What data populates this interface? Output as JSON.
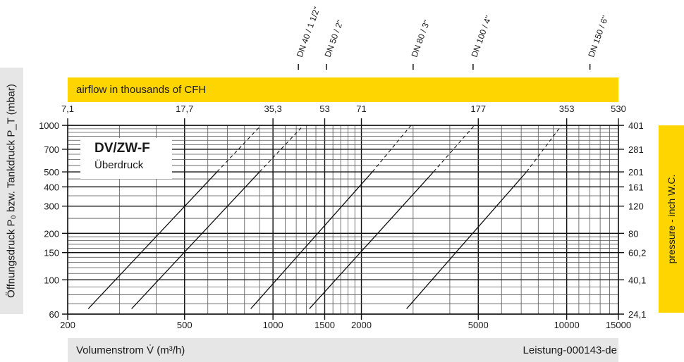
{
  "chart_data": {
    "type": "line",
    "title": "DV/ZW-F",
    "subtitle": "Überdruck",
    "xlabel": "Volumenstrom V̇ (m³/h)",
    "ylabel": "Öffnungsdruck P₀ bzw. Tankdruck P_T (mbar)",
    "x_scale": "log",
    "y_scale": "log",
    "xlim": [
      200,
      15000
    ],
    "ylim": [
      60,
      1000
    ],
    "x_ticks": [
      200,
      500,
      1000,
      1500,
      2000,
      5000,
      10000,
      15000
    ],
    "x_tick_labels": [
      "200",
      "500",
      "1000",
      "1500",
      "2000",
      "5000",
      "10000",
      "15000"
    ],
    "y_ticks": [
      60,
      100,
      150,
      200,
      300,
      400,
      500,
      700,
      1000
    ],
    "y_tick_labels": [
      "60",
      "100",
      "150",
      "200",
      "300",
      "400",
      "500",
      "700",
      "1000"
    ],
    "top_axis_label": "airflow in thousands of CFH",
    "top_ticks": [
      {
        "x": 200,
        "label": "7,1"
      },
      {
        "x": 500,
        "label": "17,7"
      },
      {
        "x": 1000,
        "label": "35,3"
      },
      {
        "x": 1500,
        "label": "53"
      },
      {
        "x": 2000,
        "label": "71"
      },
      {
        "x": 5000,
        "label": "177"
      },
      {
        "x": 10000,
        "label": "353"
      },
      {
        "x": 15000,
        "label": "530"
      }
    ],
    "right_axis_label": "pressure - inch W.C.",
    "right_ticks": [
      {
        "y": 1000,
        "label": "401"
      },
      {
        "y": 700,
        "label": "281"
      },
      {
        "y": 500,
        "label": "201"
      },
      {
        "y": 400,
        "label": "161"
      },
      {
        "y": 300,
        "label": "120"
      },
      {
        "y": 200,
        "label": "80"
      },
      {
        "y": 150,
        "label": "60,2"
      },
      {
        "y": 100,
        "label": "40,1"
      },
      {
        "y": 60,
        "label": "24,1"
      }
    ],
    "source_note": "Leistung-000143-de",
    "series": [
      {
        "name": "DN 40 / 1 1/2\"",
        "points": [
          [
            235,
            65
          ],
          [
            645,
            500
          ],
          [
            910,
            1000
          ]
        ],
        "dashed_above": 500
      },
      {
        "name": "",
        "points": [
          [
            330,
            65
          ],
          [
            900,
            500
          ],
          [
            1270,
            1000
          ]
        ],
        "dashed_above": 500
      },
      {
        "name": "DN 50 / 2\"",
        "points": [
          [
            840,
            65
          ],
          [
            2180,
            500
          ],
          [
            2950,
            1000
          ]
        ],
        "dashed_above": 500
      },
      {
        "name": "DN 80 / 3\"",
        "points": [
          [
            1330,
            65
          ],
          [
            3520,
            500
          ],
          [
            4850,
            1000
          ]
        ],
        "dashed_above": 500
      },
      {
        "name": "DN 100 / 4\"",
        "points": [
          [
            2850,
            65
          ],
          [
            7300,
            500
          ],
          [
            9600,
            1000
          ]
        ],
        "dashed_above": 500
      },
      {
        "name": "DN 150 / 6\"",
        "points": [],
        "dashed_above": 500
      }
    ],
    "dn_markers": [
      {
        "x": 1220,
        "label": "DN 40 / 1 1/2\""
      },
      {
        "x": 1520,
        "label": "DN 50 / 2\""
      },
      {
        "x": 3000,
        "label": "DN 80 / 3\""
      },
      {
        "x": 4800,
        "label": "DN 100 / 4\""
      },
      {
        "x": 12000,
        "label": "DN 150 / 6\""
      }
    ]
  }
}
